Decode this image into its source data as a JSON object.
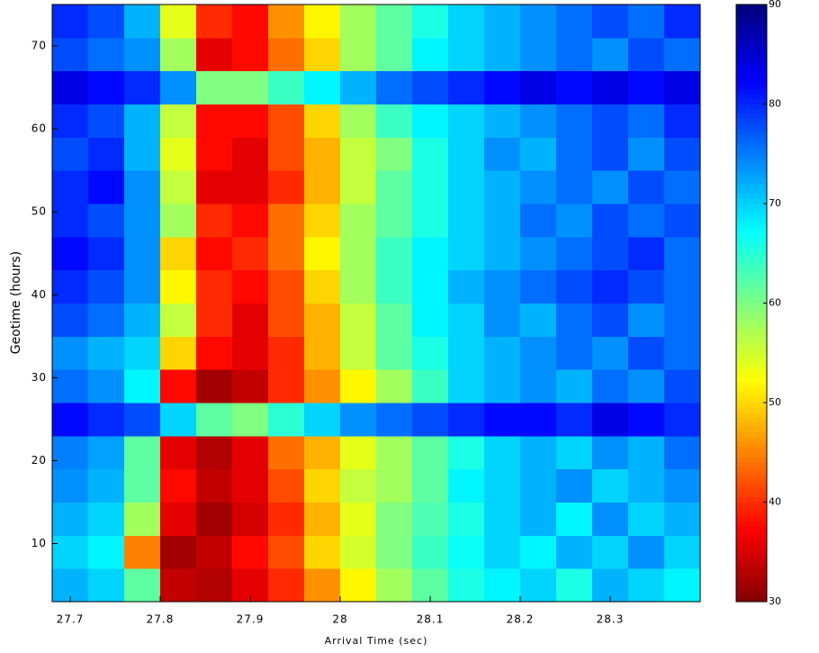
{
  "chart_data": {
    "type": "heatmap",
    "colormap": "jet",
    "x_label": "Arrival Time (sec)",
    "y_label": "Geotime (hours)",
    "xlim": [
      27.68,
      28.4
    ],
    "ylim": [
      3,
      75
    ],
    "xticks": [
      27.7,
      27.8,
      27.9,
      28,
      28.1,
      28.2,
      28.3
    ],
    "yticks": [
      10,
      20,
      30,
      40,
      50,
      60,
      70
    ],
    "clim": [
      30,
      90
    ],
    "cticks": [
      30,
      40,
      50,
      60,
      70,
      80,
      90
    ],
    "x": [
      27.7,
      27.74,
      27.78,
      27.82,
      27.86,
      27.9,
      27.94,
      27.98,
      28.02,
      28.06,
      28.1,
      28.14,
      28.18,
      28.22,
      28.26,
      28.3,
      28.34,
      28.38
    ],
    "y": [
      5,
      9,
      13,
      17,
      21,
      25,
      29,
      33,
      37,
      41,
      45,
      49,
      53,
      57,
      61,
      65,
      69,
      73
    ],
    "z": [
      [
        72,
        70,
        62,
        34,
        33,
        36,
        40,
        46,
        52,
        58,
        62,
        66,
        68,
        70,
        66,
        72,
        70,
        68
      ],
      [
        70,
        68,
        45,
        32,
        34,
        38,
        42,
        50,
        55,
        60,
        64,
        67,
        70,
        68,
        72,
        70,
        74,
        70
      ],
      [
        72,
        70,
        58,
        36,
        32,
        35,
        40,
        48,
        54,
        60,
        63,
        66,
        70,
        72,
        68,
        74,
        70,
        72
      ],
      [
        74,
        72,
        62,
        38,
        34,
        36,
        42,
        50,
        56,
        58,
        62,
        68,
        70,
        72,
        74,
        70,
        72,
        74
      ],
      [
        75,
        73,
        62,
        36,
        33,
        36,
        44,
        48,
        54,
        58,
        62,
        66,
        70,
        72,
        70,
        74,
        72,
        76
      ],
      [
        82,
        80,
        78,
        70,
        62,
        60,
        65,
        70,
        74,
        76,
        78,
        80,
        82,
        82,
        80,
        84,
        82,
        80
      ],
      [
        76,
        74,
        68,
        38,
        32,
        34,
        40,
        46,
        52,
        58,
        64,
        70,
        72,
        74,
        72,
        76,
        74,
        78
      ],
      [
        74,
        72,
        70,
        50,
        38,
        36,
        40,
        48,
        56,
        62,
        66,
        70,
        72,
        74,
        76,
        74,
        78,
        76
      ],
      [
        78,
        76,
        72,
        56,
        40,
        36,
        42,
        48,
        56,
        62,
        68,
        70,
        74,
        72,
        76,
        78,
        74,
        76
      ],
      [
        80,
        78,
        74,
        52,
        40,
        38,
        42,
        50,
        58,
        64,
        68,
        72,
        74,
        76,
        78,
        80,
        78,
        76
      ],
      [
        82,
        80,
        74,
        50,
        38,
        40,
        44,
        52,
        58,
        64,
        68,
        70,
        72,
        74,
        76,
        78,
        80,
        76
      ],
      [
        80,
        78,
        74,
        58,
        40,
        38,
        44,
        50,
        58,
        62,
        66,
        70,
        72,
        76,
        74,
        78,
        76,
        78
      ],
      [
        80,
        82,
        74,
        56,
        36,
        36,
        40,
        48,
        56,
        62,
        66,
        70,
        72,
        74,
        76,
        74,
        78,
        76
      ],
      [
        78,
        80,
        72,
        54,
        38,
        36,
        42,
        48,
        56,
        60,
        66,
        70,
        74,
        72,
        76,
        78,
        74,
        78
      ],
      [
        80,
        78,
        72,
        56,
        38,
        38,
        42,
        50,
        58,
        64,
        68,
        70,
        72,
        74,
        76,
        78,
        76,
        80
      ],
      [
        84,
        82,
        80,
        74,
        60,
        60,
        64,
        68,
        72,
        76,
        78,
        80,
        82,
        84,
        82,
        84,
        82,
        84
      ],
      [
        78,
        76,
        74,
        58,
        36,
        38,
        44,
        50,
        58,
        62,
        68,
        70,
        72,
        74,
        76,
        74,
        78,
        76
      ],
      [
        80,
        78,
        72,
        54,
        40,
        38,
        46,
        52,
        58,
        62,
        66,
        70,
        72,
        74,
        76,
        78,
        76,
        80
      ]
    ]
  }
}
